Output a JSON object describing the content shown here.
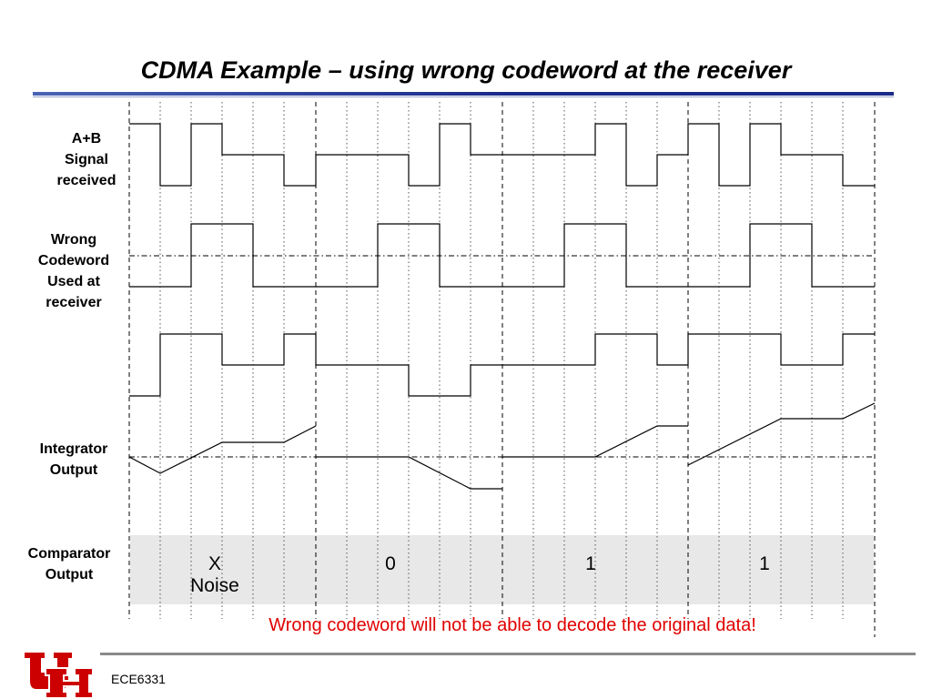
{
  "slide": {
    "title": "CDMA Example – using wrong codeword at the receiver",
    "note": "Wrong codeword will not be able to decode the original data!",
    "course": "ECE6331"
  },
  "rows": {
    "signal": [
      "A+B",
      "Signal",
      "received"
    ],
    "codeword": [
      "Wrong",
      "Codeword",
      "Used at",
      "receiver"
    ],
    "integrator": [
      "Integrator",
      "Output"
    ],
    "comparator": [
      "Comparator",
      "Output"
    ]
  },
  "comparator_values": [
    {
      "value": "X",
      "note": "Noise"
    },
    {
      "value": "0",
      "note": ""
    },
    {
      "value": "1",
      "note": ""
    },
    {
      "value": "1",
      "note": ""
    }
  ],
  "colors": {
    "note": "#e00000",
    "comparator_band": "#e8e8e8",
    "title_rule": "#1a2a8a",
    "logo": "#cc0000"
  },
  "icons": {
    "logo": "university-of-houston-logo"
  }
}
